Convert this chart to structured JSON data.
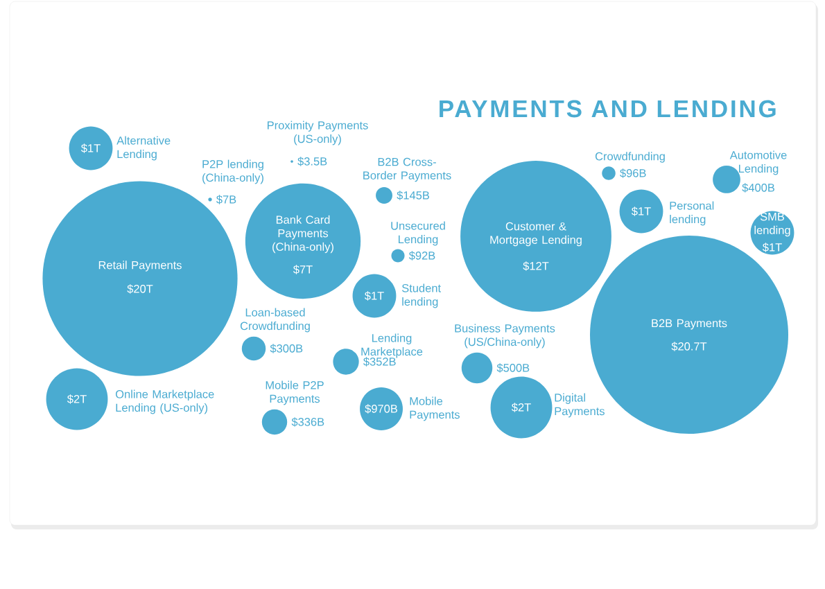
{
  "chart_data": {
    "type": "other",
    "title": "PAYMENTS AND LENDING",
    "color": "#4aabd1",
    "categories": [
      "Retail Payments",
      "Alternative Lending",
      "P2P lending (China-only)",
      "Proximity Payments (US-only)",
      "Bank Card Payments (China-only)",
      "B2B Cross-Border Payments",
      "Unsecured Lending",
      "Student lending",
      "Loan-based Crowdfunding",
      "Lending Marketplace",
      "Mobile P2P Payments",
      "Mobile Payments",
      "Online Marketplace Lending (US-only)",
      "Customer & Mortgage Lending",
      "Crowdfunding",
      "Business Payments (US/China-only)",
      "Digital Payments",
      "Personal lending",
      "Automotive Lending",
      "SMB lending",
      "B2B Payments"
    ],
    "values": [
      20000000000000,
      1000000000000,
      7000000000,
      3500000000,
      7000000000000,
      145000000000,
      92000000000,
      1000000000000,
      300000000000,
      352000000000,
      336000000000,
      970000000000,
      2000000000000,
      12000000000000,
      96000000000,
      500000000000,
      2000000000000,
      1000000000000,
      400000000000,
      1000000000000,
      20700000000000
    ],
    "value_labels": [
      "$20T",
      "$1T",
      "$7B",
      "$3.5B",
      "$7T",
      "$145B",
      "$92B",
      "$1T",
      "$300B",
      "$352B",
      "$336B",
      "$970B",
      "$2T",
      "$12T",
      "$96B",
      "$500B",
      "$2T",
      "$1T",
      "$400B",
      "$1T",
      "$20.7T"
    ]
  }
}
